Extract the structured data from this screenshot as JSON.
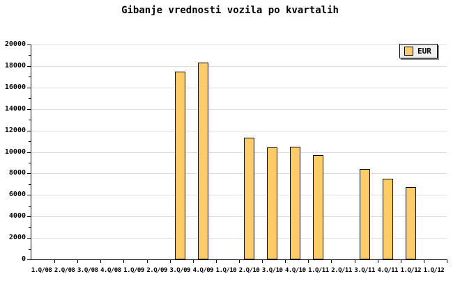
{
  "title": "Gibanje vrednosti vozila po kvartalih",
  "legend": {
    "label": "EUR"
  },
  "colors": {
    "bar_fill": "#FFCC66",
    "bar_border": "#000000",
    "gridline": "#DDDDDD",
    "axis": "#000000",
    "legend_bg": "#F0F0F0",
    "legend_shadow": "#888888",
    "text": "#000000",
    "background": "#FFFFFF"
  },
  "chart_data": {
    "type": "bar",
    "title": "Gibanje vrednosti vozila po kvartalih",
    "xlabel": "",
    "ylabel": "",
    "categories": [
      "1.Q/08",
      "2.Q/08",
      "3.Q/08",
      "4.Q/08",
      "1.Q/09",
      "2.Q/09",
      "3.Q/09",
      "4.Q/09",
      "1.Q/10",
      "2.Q/10",
      "3.Q/10",
      "4.Q/10",
      "1.Q/11",
      "2.Q/11",
      "3.Q/11",
      "4.Q/11",
      "1.Q/12",
      "1.Q/12"
    ],
    "series": [
      {
        "name": "EUR",
        "values": [
          null,
          null,
          null,
          null,
          null,
          null,
          17500,
          18300,
          null,
          11300,
          10400,
          10500,
          9700,
          null,
          8400,
          7500,
          6700,
          null
        ]
      }
    ],
    "ylim": [
      0,
      20000
    ],
    "y_ticks": [
      0,
      2000,
      4000,
      6000,
      8000,
      10000,
      12000,
      14000,
      16000,
      18000,
      20000
    ],
    "y_minor_step": 1000,
    "grid": true,
    "legend_position": "top-right"
  }
}
